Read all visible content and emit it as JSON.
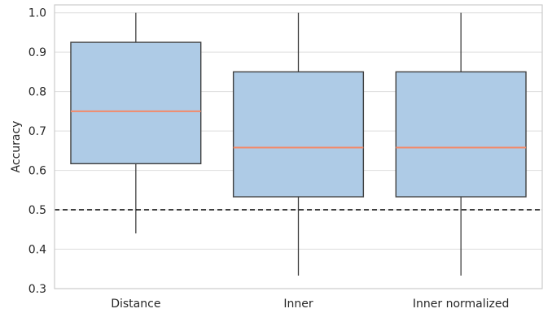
{
  "chart_data": {
    "type": "box",
    "title": "",
    "xlabel": "",
    "ylabel": "Accuracy",
    "ylim": [
      0.3,
      1.02
    ],
    "yticks": [
      "0.3",
      "0.4",
      "0.5",
      "0.6",
      "0.7",
      "0.8",
      "0.9",
      "1.0"
    ],
    "grid": true,
    "reference_line": {
      "y": 0.5,
      "style": "dashed",
      "color": "#000000"
    },
    "box_color": "#aecbe6",
    "median_color": "#f28a6a",
    "categories": [
      "Distance",
      "Inner",
      "Inner normalized"
    ],
    "boxes": [
      {
        "label": "Distance",
        "whisker_low": 0.44,
        "q1": 0.617,
        "median": 0.75,
        "q3": 0.925,
        "whisker_high": 1.0
      },
      {
        "label": "Inner",
        "whisker_low": 0.333,
        "q1": 0.533,
        "median": 0.658,
        "q3": 0.85,
        "whisker_high": 1.0
      },
      {
        "label": "Inner normalized",
        "whisker_low": 0.333,
        "q1": 0.533,
        "median": 0.658,
        "q3": 0.85,
        "whisker_high": 1.0
      }
    ]
  }
}
